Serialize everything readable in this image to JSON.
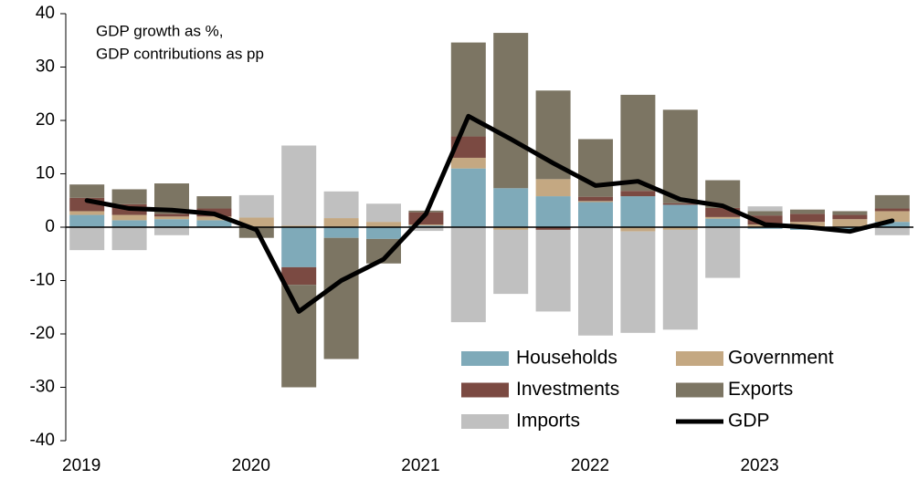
{
  "chart_data": {
    "type": "bar",
    "annotation": [
      "GDP growth as %,",
      "GDP contributions as pp"
    ],
    "categories": [
      "2019",
      null,
      null,
      null,
      "2020",
      null,
      null,
      null,
      "2021",
      null,
      null,
      null,
      "2022",
      null,
      null,
      null,
      "2023",
      null,
      null,
      null
    ],
    "stacked": true,
    "series": [
      {
        "name": "Households",
        "color": "#7faab9",
        "values": [
          2.3,
          1.3,
          1.5,
          1.3,
          0,
          -7.5,
          -2,
          -2.2,
          0.3,
          11,
          7.3,
          5.8,
          4.7,
          5.8,
          4.2,
          1.6,
          -0.3,
          -0.5,
          -0.5,
          1
        ]
      },
      {
        "name": "Government",
        "color": "#c4a882",
        "values": [
          0.7,
          1,
          0.5,
          0.7,
          1.8,
          0.3,
          1.7,
          1,
          0.2,
          2,
          -0.5,
          3.2,
          0.2,
          -0.8,
          -0.5,
          0.3,
          0.5,
          1,
          1.5,
          2
        ]
      },
      {
        "name": "Investments",
        "color": "#7b4a42",
        "values": [
          2.5,
          2,
          0.5,
          1.5,
          0,
          -3.3,
          0,
          0,
          2.3,
          4,
          0,
          -0.5,
          0.8,
          1,
          0.3,
          1.7,
          1.7,
          1.5,
          0.8,
          0.5
        ]
      },
      {
        "name": "Exports",
        "color": "#7c7563",
        "values": [
          2.5,
          2.8,
          5.7,
          2.3,
          -2,
          -19.2,
          -22.7,
          -4.6,
          0.3,
          17.6,
          29.1,
          16.6,
          10.8,
          18,
          17.5,
          5.2,
          0.8,
          0.8,
          0.7,
          2.5
        ]
      },
      {
        "name": "Imports",
        "color": "#c0c0c0",
        "values": [
          -4.3,
          -4.3,
          -1.5,
          0,
          4.2,
          15,
          5,
          3.4,
          -0.7,
          -17.8,
          -12,
          -15.3,
          -20.3,
          -19,
          -18.7,
          -9.5,
          0.9,
          0,
          0,
          -1.5
        ]
      },
      {
        "name": "GDP",
        "color": "#000000",
        "type": "line",
        "values": [
          5,
          3.5,
          3.2,
          2.5,
          -0.5,
          -15.8,
          -10,
          -6,
          2.5,
          20.8,
          16.5,
          12,
          7.8,
          8.6,
          5.2,
          4,
          0.5,
          0,
          -0.8,
          1.2
        ]
      }
    ],
    "ylim": [
      -40,
      40
    ],
    "yticks": [
      -40,
      -30,
      -20,
      -10,
      0,
      10,
      20,
      30,
      40
    ],
    "grid": false
  }
}
